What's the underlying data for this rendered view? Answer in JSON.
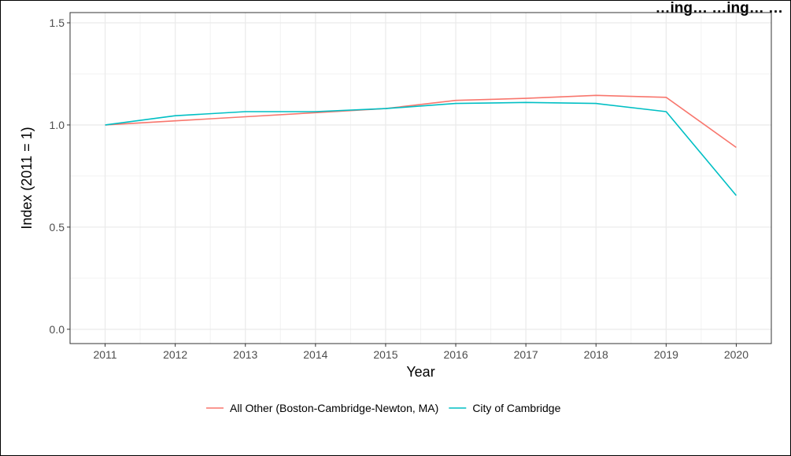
{
  "chart_data": {
    "type": "line",
    "title": "…ing… …ing… …",
    "xlabel": "Year",
    "ylabel": "Index (2011 = 1)",
    "x": [
      2011,
      2012,
      2013,
      2014,
      2015,
      2016,
      2017,
      2018,
      2019,
      2020
    ],
    "xticks": [
      "2011",
      "2012",
      "2013",
      "2014",
      "2015",
      "2016",
      "2017",
      "2018",
      "2019",
      "2020"
    ],
    "ylim": [
      0,
      1.55
    ],
    "yticks": [
      0.0,
      0.5,
      1.0,
      1.5
    ],
    "ytick_labels": [
      "0.0",
      "0.5",
      "1.0",
      "1.5"
    ],
    "grid": true,
    "legend_position": "bottom",
    "series": [
      {
        "name": "All Other (Boston-Cambridge-Newton, MA)",
        "color": "#F8766D",
        "values": [
          1.0,
          1.02,
          1.04,
          1.06,
          1.08,
          1.12,
          1.13,
          1.145,
          1.135,
          0.89
        ]
      },
      {
        "name": "City of Cambridge",
        "color": "#00BFC4",
        "values": [
          1.0,
          1.045,
          1.065,
          1.065,
          1.08,
          1.105,
          1.11,
          1.105,
          1.065,
          0.655
        ]
      }
    ]
  }
}
